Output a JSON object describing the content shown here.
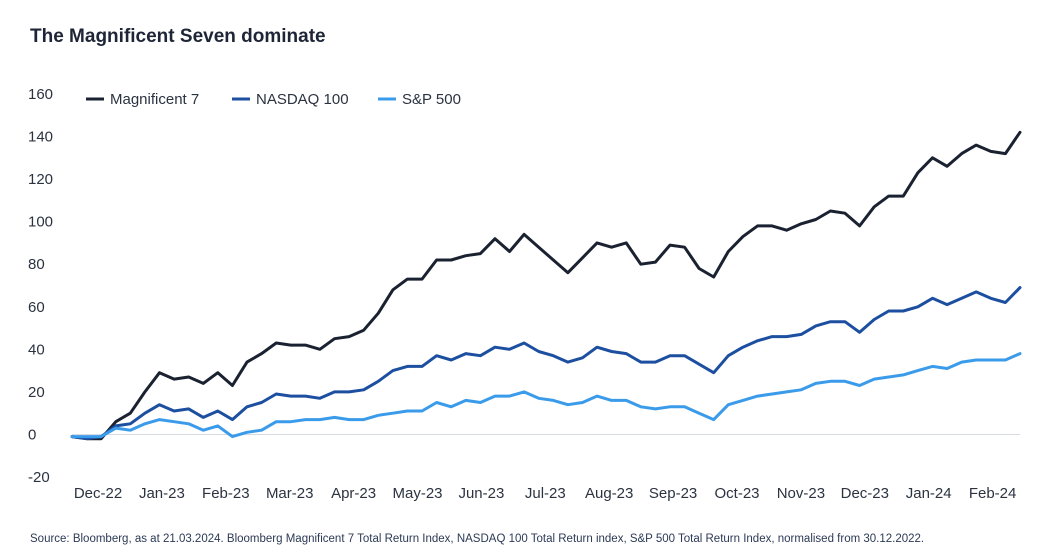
{
  "chart_data": {
    "type": "line",
    "title": "The Magnificent Seven dominate",
    "source": "Source: Bloomberg, as at 21.03.2024. Bloomberg Magnificent 7 Total Return Index, NASDAQ 100 Total Return index, S&P 500 Total Return Index, normalised from 30.12.2022.",
    "xlabel": "",
    "ylabel": "",
    "ylim": [
      -20,
      160
    ],
    "yticks": [
      -20,
      0,
      20,
      40,
      60,
      80,
      100,
      120,
      140,
      160
    ],
    "grid": false,
    "legend": "top-left",
    "x_tick_labels": [
      "Dec-22",
      "Jan-23",
      "Feb-23",
      "Mar-23",
      "Apr-23",
      "May-23",
      "Jun-23",
      "Jul-23",
      "Aug-23",
      "Sep-23",
      "Oct-23",
      "Nov-23",
      "Dec-23",
      "Jan-24",
      "Feb-24"
    ],
    "series": [
      {
        "name": "Magnificent 7",
        "color": "#1a2130",
        "values": [
          -1,
          -2,
          -2,
          6,
          10,
          20,
          29,
          26,
          27,
          24,
          29,
          23,
          34,
          38,
          43,
          42,
          42,
          40,
          45,
          46,
          49,
          57,
          68,
          73,
          73,
          82,
          82,
          84,
          85,
          92,
          86,
          94,
          88,
          82,
          76,
          83,
          90,
          88,
          90,
          80,
          81,
          89,
          88,
          78,
          74,
          86,
          93,
          98,
          98,
          96,
          99,
          101,
          105,
          104,
          98,
          107,
          112,
          112,
          123,
          130,
          126,
          132,
          136,
          133,
          132,
          142
        ]
      },
      {
        "name": "NASDAQ 100",
        "color": "#1c4fa0",
        "values": [
          -1,
          -2,
          -1,
          4,
          5,
          10,
          14,
          11,
          12,
          8,
          11,
          7,
          13,
          15,
          19,
          18,
          18,
          17,
          20,
          20,
          21,
          25,
          30,
          32,
          32,
          37,
          35,
          38,
          37,
          41,
          40,
          43,
          39,
          37,
          34,
          36,
          41,
          39,
          38,
          34,
          34,
          37,
          37,
          33,
          29,
          37,
          41,
          44,
          46,
          46,
          47,
          51,
          53,
          53,
          48,
          54,
          58,
          58,
          60,
          64,
          61,
          64,
          67,
          64,
          62,
          69
        ]
      },
      {
        "name": "S&P 500",
        "color": "#3a9bea",
        "values": [
          -1,
          -1,
          -1,
          3,
          2,
          5,
          7,
          6,
          5,
          2,
          4,
          -1,
          1,
          2,
          6,
          6,
          7,
          7,
          8,
          7,
          7,
          9,
          10,
          11,
          11,
          15,
          13,
          16,
          15,
          18,
          18,
          20,
          17,
          16,
          14,
          15,
          18,
          16,
          16,
          13,
          12,
          13,
          13,
          10,
          7,
          14,
          16,
          18,
          19,
          20,
          21,
          24,
          25,
          25,
          23,
          26,
          27,
          28,
          30,
          32,
          31,
          34,
          35,
          35,
          35,
          38
        ]
      }
    ]
  }
}
